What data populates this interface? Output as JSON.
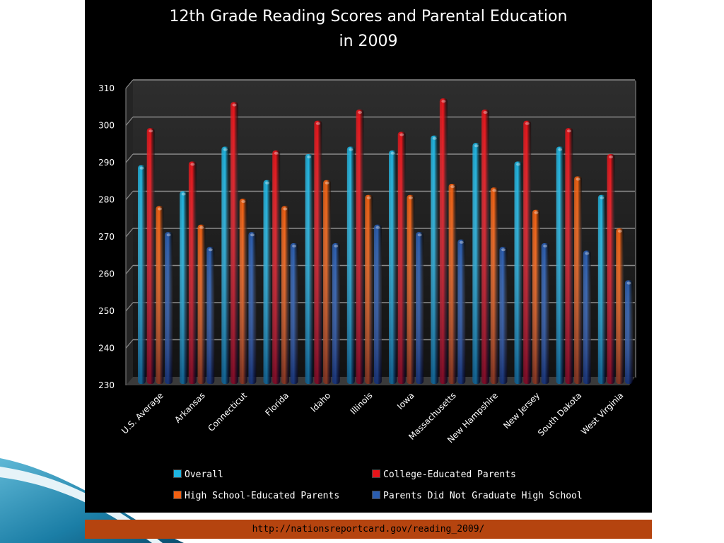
{
  "chart_data": {
    "type": "bar",
    "title_lines": [
      "12th Grade Reading Scores and Parental Education",
      "in 2009"
    ],
    "categories": [
      "U.S. Average",
      "Arkansas",
      "Connecticut",
      "Florida",
      "Idaho",
      "Illinois",
      "Iowa",
      "Massachusetts",
      "New Hampshire",
      "New Jersey",
      "South Dakota",
      "West Virginia"
    ],
    "series": [
      {
        "name": "Overall",
        "color": "#1eb4e0",
        "values": [
          287,
          280,
          292,
          283,
          290,
          292,
          291,
          295,
          293,
          288,
          292,
          279
        ]
      },
      {
        "name": "College-Educated Parents",
        "color": "#e8141a",
        "values": [
          297,
          288,
          304,
          291,
          299,
          302,
          296,
          305,
          302,
          299,
          297,
          290
        ]
      },
      {
        "name": "High School-Educated Parents",
        "color": "#f26011",
        "values": [
          276,
          271,
          278,
          276,
          283,
          279,
          279,
          282,
          281,
          275,
          284,
          270
        ]
      },
      {
        "name": "Parents Did Not Graduate High School",
        "color": "#2a5db0",
        "values": [
          269,
          265,
          269,
          266,
          266,
          271,
          269,
          267,
          265,
          266,
          264,
          256
        ]
      }
    ],
    "ylim": [
      230,
      310
    ],
    "yticks": [
      230,
      240,
      250,
      260,
      270,
      280,
      290,
      300,
      310
    ],
    "grid": true,
    "legend_position": "bottom"
  },
  "source": {
    "url": "http://nationsreportcard.gov/reading_2009/"
  }
}
